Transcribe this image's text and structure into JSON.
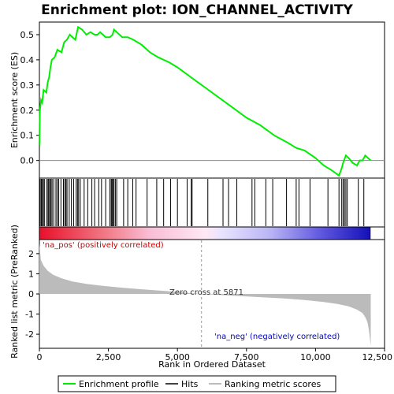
{
  "chart_data": {
    "type": "line",
    "title": "Enrichment plot: ION_CHANNEL_ACTIVITY",
    "colors": {
      "enrichment": "#00ee00",
      "hits": "#000000",
      "ranking": "#bbbbbb",
      "pos_label": "#cc0000",
      "neg_label": "#0000cc"
    },
    "es_panel": {
      "ylabel": "Enrichment score (ES)",
      "ylim": [
        -0.07,
        0.55
      ],
      "yticks": [
        "0.0",
        "0.1",
        "0.2",
        "0.3",
        "0.4",
        "0.5"
      ],
      "ytick_values": [
        0.0,
        0.1,
        0.2,
        0.3,
        0.4,
        0.5
      ],
      "grid": false,
      "x": [
        0,
        20,
        60,
        100,
        150,
        250,
        300,
        350,
        400,
        450,
        550,
        650,
        800,
        900,
        1000,
        1100,
        1200,
        1300,
        1400,
        1550,
        1700,
        1850,
        2000,
        2100,
        2200,
        2300,
        2400,
        2550,
        2650,
        2700,
        2800,
        3000,
        3200,
        3400,
        3700,
        4000,
        4300,
        4700,
        5000,
        5500,
        6000,
        6500,
        7000,
        7500,
        8000,
        8500,
        9000,
        9300,
        9600,
        10000,
        10300,
        10600,
        10850,
        10950,
        11000,
        11100,
        11200,
        11350,
        11500,
        11600,
        11700,
        11800,
        11900,
        12000
      ],
      "y": [
        0.06,
        0.2,
        0.24,
        0.23,
        0.28,
        0.27,
        0.31,
        0.33,
        0.37,
        0.4,
        0.41,
        0.44,
        0.43,
        0.47,
        0.48,
        0.5,
        0.49,
        0.48,
        0.53,
        0.52,
        0.5,
        0.51,
        0.5,
        0.5,
        0.51,
        0.5,
        0.49,
        0.49,
        0.5,
        0.52,
        0.51,
        0.49,
        0.49,
        0.48,
        0.46,
        0.43,
        0.41,
        0.39,
        0.37,
        0.33,
        0.29,
        0.25,
        0.21,
        0.17,
        0.14,
        0.1,
        0.07,
        0.05,
        0.04,
        0.01,
        -0.02,
        -0.04,
        -0.06,
        -0.03,
        -0.01,
        0.02,
        0.01,
        -0.01,
        -0.02,
        0.0,
        0.0,
        0.02,
        0.01,
        0.0
      ]
    },
    "hits": [
      30,
      70,
      110,
      140,
      180,
      260,
      310,
      340,
      380,
      420,
      460,
      520,
      600,
      650,
      700,
      780,
      870,
      920,
      960,
      1000,
      1080,
      1160,
      1240,
      1330,
      1380,
      1420,
      1480,
      1620,
      1750,
      1900,
      2000,
      2150,
      2250,
      2400,
      2550,
      2600,
      2630,
      2660,
      2700,
      2750,
      2800,
      3050,
      3200,
      3380,
      3500,
      3900,
      4250,
      4500,
      4750,
      5000,
      5350,
      5500,
      5530,
      6100,
      6650,
      6850,
      7150,
      7700,
      7800,
      8200,
      8450,
      8950,
      9300,
      9400,
      9800,
      10450,
      10850,
      10950,
      11000,
      11050,
      11100,
      11150,
      11550,
      11750
    ],
    "ranking_panel": {
      "ylabel": "Ranked list metric (PreRanked)",
      "xlabel": "Rank in Ordered Dataset",
      "ylim": [
        -2.7,
        2.7
      ],
      "yticks": [
        "-2",
        "-1",
        "0",
        "1",
        "2"
      ],
      "ytick_values": [
        -2,
        -1,
        0,
        1,
        2
      ],
      "x": [
        0,
        50,
        150,
        300,
        500,
        800,
        1200,
        1700,
        2300,
        3000,
        3800,
        4600,
        5300,
        5871,
        6500,
        7200,
        8000,
        8800,
        9600,
        10300,
        10800,
        11200,
        11500,
        11700,
        11800,
        11880,
        11930,
        11970,
        12000
      ],
      "values": [
        2.5,
        1.7,
        1.4,
        1.15,
        0.95,
        0.78,
        0.62,
        0.5,
        0.4,
        0.31,
        0.22,
        0.14,
        0.06,
        0.0,
        -0.05,
        -0.1,
        -0.16,
        -0.22,
        -0.3,
        -0.4,
        -0.5,
        -0.62,
        -0.78,
        -0.95,
        -1.15,
        -1.4,
        -1.75,
        -2.2,
        -2.6
      ],
      "zero_cross": 5871,
      "zero_cross_label": "Zero cross at 5871",
      "pos_label": "'na_pos' (positively correlated)",
      "neg_label": "'na_neg' (negatively correlated)"
    },
    "x_axis": {
      "xlim": [
        0,
        12500
      ],
      "xticks": [
        "0",
        "2,500",
        "5,000",
        "7,500",
        "10,000",
        "12,500"
      ],
      "xtick_values": [
        0,
        2500,
        5000,
        7500,
        10000,
        12500
      ]
    },
    "legend": {
      "placement": "bottom",
      "items": [
        "Enrichment profile",
        "Hits",
        "Ranking metric scores"
      ]
    }
  }
}
